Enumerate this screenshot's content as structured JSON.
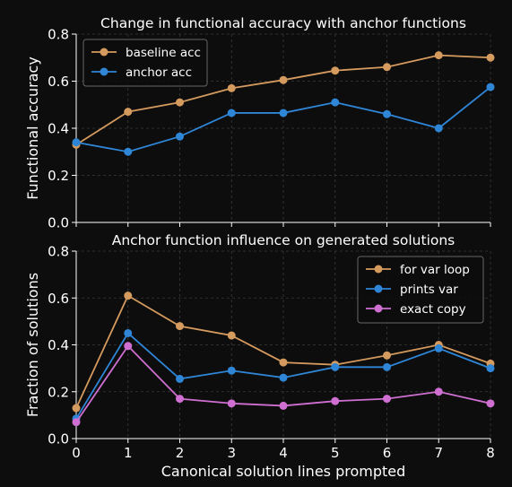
{
  "chart_data": [
    {
      "type": "line",
      "title": "Change in functional accuracy with anchor functions",
      "xlabel": "",
      "ylabel": "Functional accuracy",
      "x": [
        0,
        1,
        2,
        3,
        4,
        5,
        6,
        7,
        8
      ],
      "xlim": [
        0,
        8
      ],
      "ylim": [
        0,
        0.8
      ],
      "yticks": [
        "0.0",
        "0.2",
        "0.4",
        "0.6",
        "0.8"
      ],
      "grid": true,
      "legend_position": "upper-left",
      "series": [
        {
          "name": "baseline acc",
          "color": "#d59a5e",
          "values": [
            0.33,
            0.47,
            0.51,
            0.57,
            0.605,
            0.645,
            0.66,
            0.71,
            0.7
          ]
        },
        {
          "name": "anchor acc",
          "color": "#2f86d7",
          "values": [
            0.34,
            0.3,
            0.365,
            0.465,
            0.465,
            0.51,
            0.46,
            0.4,
            0.575
          ]
        }
      ]
    },
    {
      "type": "line",
      "title": "Anchor function influence on generated solutions",
      "xlabel": "Canonical solution lines prompted",
      "ylabel": "Fraction of solutions",
      "x": [
        0,
        1,
        2,
        3,
        4,
        5,
        6,
        7,
        8
      ],
      "xticks": [
        "0",
        "1",
        "2",
        "3",
        "4",
        "5",
        "6",
        "7",
        "8"
      ],
      "xlim": [
        0,
        8
      ],
      "ylim": [
        0,
        0.8
      ],
      "yticks": [
        "0.0",
        "0.2",
        "0.4",
        "0.6",
        "0.8"
      ],
      "grid": true,
      "legend_position": "upper-right",
      "series": [
        {
          "name": "for var loop",
          "color": "#d59a5e",
          "values": [
            0.13,
            0.61,
            0.48,
            0.44,
            0.325,
            0.315,
            0.355,
            0.4,
            0.32
          ]
        },
        {
          "name": "prints var",
          "color": "#2f86d7",
          "values": [
            0.085,
            0.45,
            0.255,
            0.29,
            0.26,
            0.305,
            0.305,
            0.385,
            0.3
          ]
        },
        {
          "name": "exact copy",
          "color": "#cf6fd1",
          "values": [
            0.07,
            0.395,
            0.17,
            0.15,
            0.14,
            0.16,
            0.17,
            0.2,
            0.15
          ]
        }
      ]
    }
  ]
}
